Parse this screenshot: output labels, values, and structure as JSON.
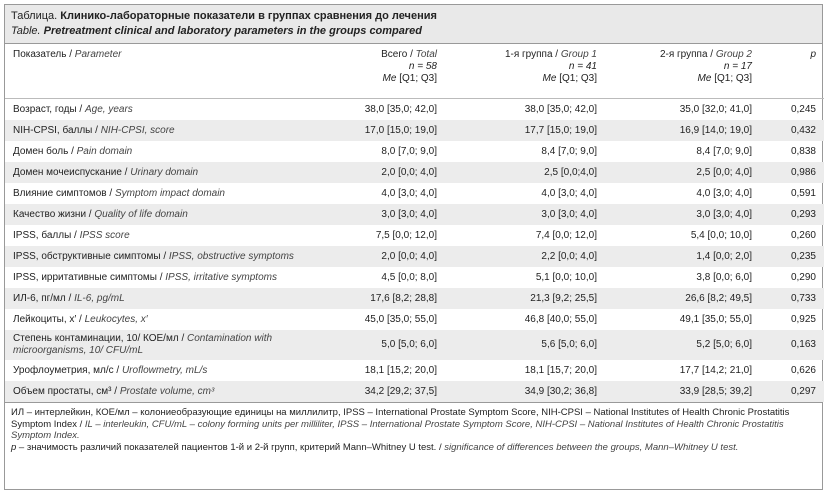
{
  "title": {
    "label": "Таблица. ",
    "text": "Клинико-лабораторные показатели в группах сравнения до лечения"
  },
  "subtitle": {
    "label": "Table. ",
    "text": "Pretreatment clinical and laboratory parameters in the groups compared"
  },
  "header": {
    "param": {
      "ru": "Показатель / ",
      "en": "Parameter"
    },
    "total": {
      "ru": "Всего / ",
      "en": "Total",
      "n": "n = 58",
      "me": "Me",
      "q": " [Q1; Q3]"
    },
    "g1": {
      "ru": "1-я группа / ",
      "en": "Group 1",
      "n": "n = 41",
      "me": "Me",
      "q": " [Q1; Q3]"
    },
    "g2": {
      "ru": "2-я группа / ",
      "en": "Group 2",
      "n": "n = 17",
      "me": "Me",
      "q": " [Q1; Q3]"
    },
    "p": "p"
  },
  "rows": [
    {
      "ru": "Возраст, годы / ",
      "en": "Age, years",
      "total": "38,0 [35,0; 42,0]",
      "g1": "38,0 [35,0; 42,0]",
      "g2": "35,0 [32,0; 41,0]",
      "p": "0,245"
    },
    {
      "ru": "NIH-CPSI, баллы / ",
      "en": "NIH-CPSI, score",
      "total": "17,0 [15,0; 19,0]",
      "g1": "17,7 [15,0; 19,0]",
      "g2": "16,9 [14,0; 19,0]",
      "p": "0,432"
    },
    {
      "ru": "Домен боль / ",
      "en": "Pain domain",
      "total": "8,0 [7,0; 9,0]",
      "g1": "8,4 [7,0; 9,0]",
      "g2": "8,4 [7,0; 9,0]",
      "p": "0,838"
    },
    {
      "ru": "Домен мочеиспускание / ",
      "en": "Urinary domain",
      "total": "2,0 [0,0; 4,0]",
      "g1": "2,5 [0,0;4,0]",
      "g2": "2,5 [0,0; 4,0]",
      "p": "0,986"
    },
    {
      "ru": "Влияние симптомов / ",
      "en": "Symptom impact domain",
      "total": "4,0 [3,0; 4,0]",
      "g1": "4,0 [3,0; 4,0]",
      "g2": "4,0 [3,0; 4,0]",
      "p": "0,591"
    },
    {
      "ru": "Качество жизни / ",
      "en": "Quality of life domain",
      "total": "3,0 [3,0; 4,0]",
      "g1": "3,0 [3,0; 4,0]",
      "g2": "3,0 [3,0; 4,0]",
      "p": "0,293"
    },
    {
      "ru": "IPSS, баллы / ",
      "en": "IPSS score",
      "total": "7,5 [0,0; 12,0]",
      "g1": "7,4 [0,0; 12,0]",
      "g2": "5,4 [0,0; 10,0]",
      "p": "0,260"
    },
    {
      "ru": "IPSS, обструктивные симптомы / ",
      "en": "IPSS, obstructive symptoms",
      "total": "2,0 [0,0; 4,0]",
      "g1": "2,2 [0,0; 4,0]",
      "g2": "1,4 [0,0; 2,0]",
      "p": "0,235"
    },
    {
      "ru": "IPSS, ирритативные симптомы / ",
      "en": "IPSS, irritative symptoms",
      "total": "4,5 [0,0; 8,0]",
      "g1": "5,1 [0,0; 10,0]",
      "g2": "3,8 [0,0; 6,0]",
      "p": "0,290"
    },
    {
      "ru": "ИЛ-6, пг/мл / ",
      "en": "IL-6, pg/mL",
      "total": "17,6 [8,2; 28,8]",
      "g1": "21,3 [9,2; 25,5]",
      "g2": "26,6 [8,2; 49,5]",
      "p": "0,733"
    },
    {
      "ru": "Лейкоциты, х′ / ",
      "en": "Leukocytes, х′",
      "total": "45,0 [35,0; 55,0]",
      "g1": "46,8 [40,0; 55,0]",
      "g2": "49,1 [35,0; 55,0]",
      "p": "0,925"
    },
    {
      "ru": "Степень контаминации, 10/ КОЕ/мл / ",
      "en": "Contamination with microorganisms, 10/ CFU/mL",
      "total": "5,0 [5,0; 6,0]",
      "g1": "5,6 [5,0; 6,0]",
      "g2": "5,2 [5,0; 6,0]",
      "p": "0,163"
    },
    {
      "ru": "Урофлоуметрия, мл/с / ",
      "en": "Uroflowmetry, mL/s",
      "total": "18,1 [15,2; 20,0]",
      "g1": "18,1 [15,7; 20,0]",
      "g2": "17,7 [14,2; 21,0]",
      "p": "0,626"
    },
    {
      "ru": "Объем простаты, см³ / ",
      "en": "Prostate volume, cm³",
      "total": "34,2 [29,2; 37,5]",
      "g1": "34,9 [30,2; 36,8]",
      "g2": "33,9 [28,5; 39,2]",
      "p": "0,297"
    }
  ],
  "footnotes": [
    {
      "ru": "ИЛ – интерлейкин, КОЕ/мл – колониеобразующие единицы на миллилитр, IPSS – International Prostate Symptom Score, NIH-CPSI – National Institutes of Health Chronic Prostatitis Symptom Index / ",
      "en": "IL – interleukin, CFU/mL – colony forming units per milliliter, IPSS – International Prostate Symptom Score, NIH-CPSI – National Institutes of Health Chronic Prostatitis Symptom Index."
    },
    {
      "sym": "p",
      "ru": " – значимость различий показателей пациентов 1-й и 2-й групп, критерий Mann–Whitney U test. / ",
      "en": "significance of differences between the groups, Mann–Whitney U test."
    }
  ]
}
